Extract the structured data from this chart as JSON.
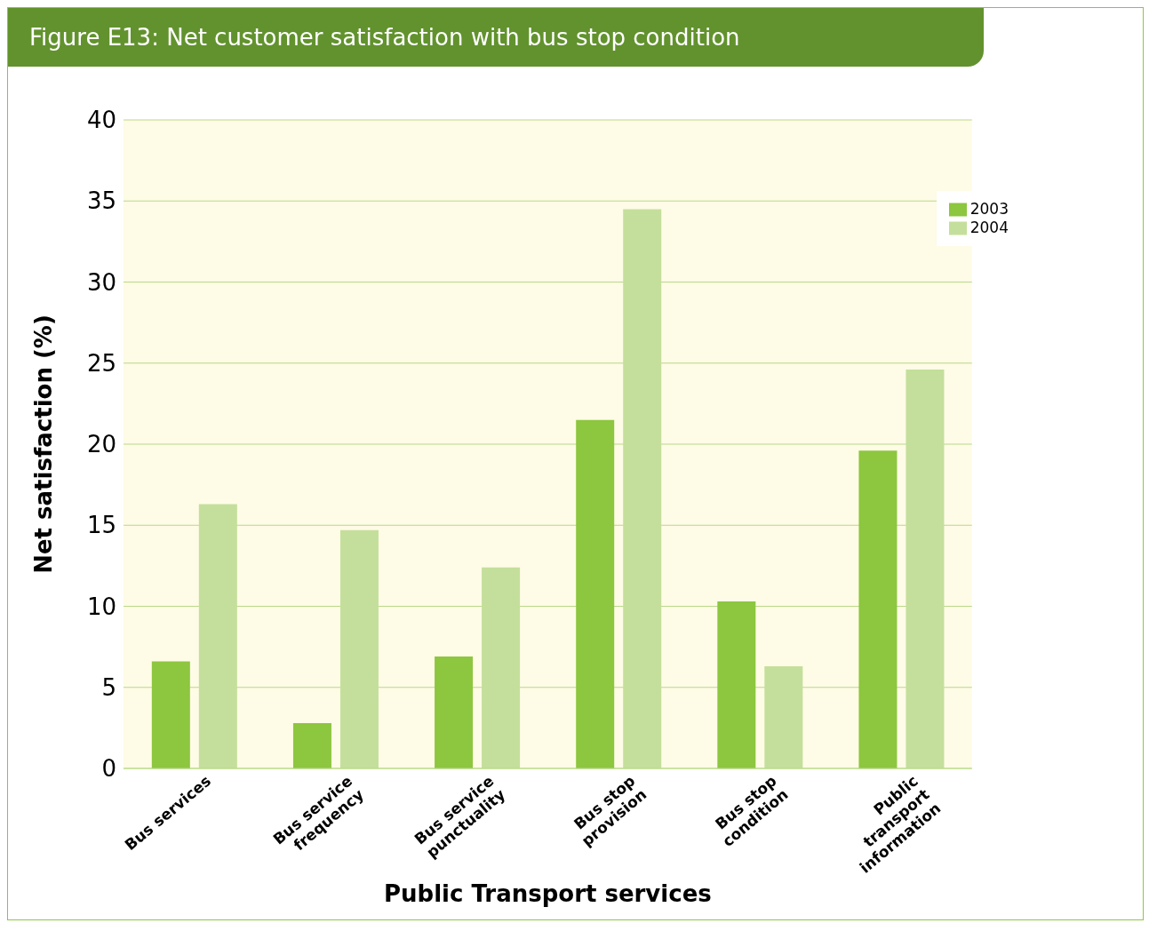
{
  "chart_data": {
    "type": "bar",
    "title": "Figure E13: Net customer satisfaction with bus stop condition",
    "xlabel": "Public Transport services",
    "ylabel": "Net satisfaction (%)",
    "categories": [
      "Bus services",
      "Bus service frequency",
      "Bus service punctuality",
      "Bus stop provision",
      "Bus stop condition",
      "Public transport information"
    ],
    "series": [
      {
        "name": "2003",
        "color": "#8dc63f",
        "values": [
          6.6,
          2.8,
          6.9,
          21.5,
          10.3,
          19.6
        ]
      },
      {
        "name": "2004",
        "color": "#c4df9b",
        "values": [
          16.3,
          14.7,
          12.4,
          34.5,
          6.3,
          24.6
        ]
      }
    ],
    "ylim": [
      0,
      40
    ],
    "yticks": [
      0,
      5,
      10,
      15,
      20,
      25,
      30,
      35,
      40
    ],
    "grid": "y",
    "legend": "top right"
  }
}
